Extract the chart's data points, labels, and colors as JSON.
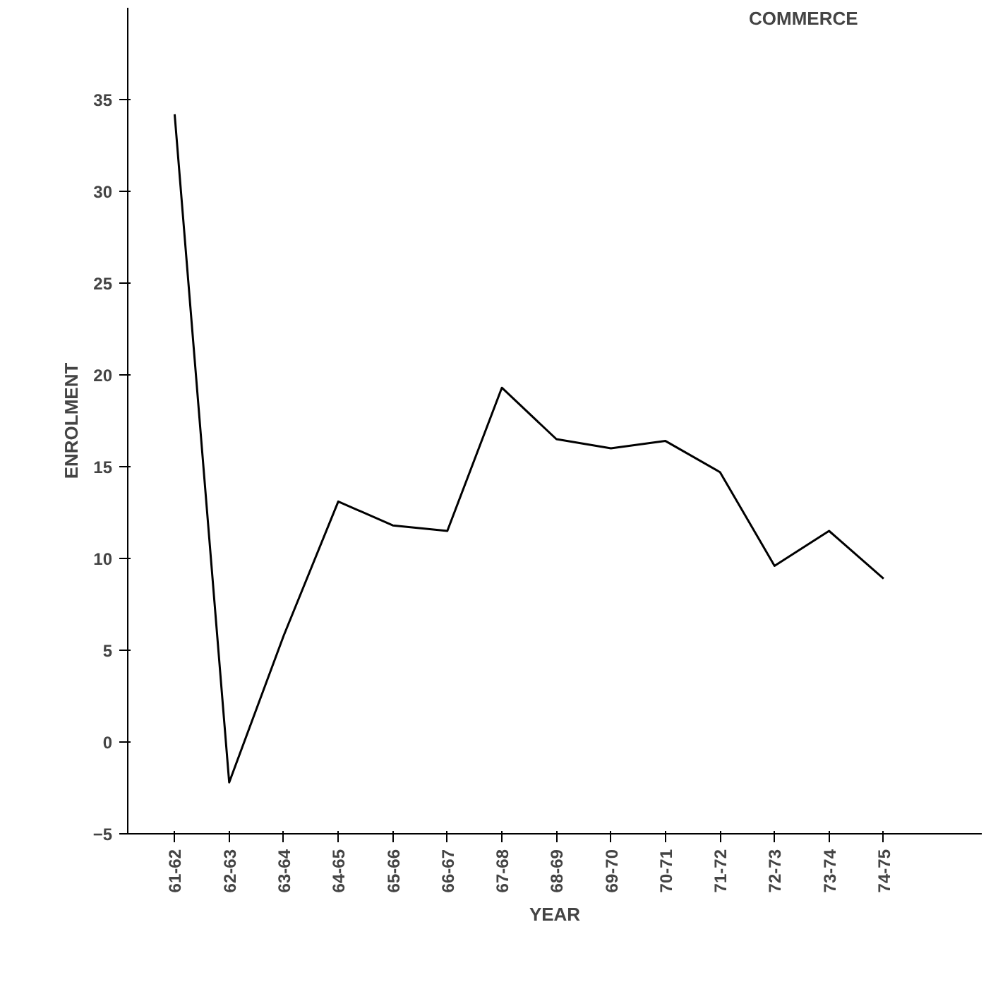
{
  "chart_data": {
    "type": "line",
    "xlabel": "YEAR",
    "ylabel": "ENROLMENT",
    "annotations": [
      "COMMERCE"
    ],
    "categories": [
      "61-62",
      "62-63",
      "63-64",
      "64-65",
      "65-66",
      "66-67",
      "67-68",
      "68-69",
      "69-70",
      "70-71",
      "71-72",
      "72-73",
      "73-74",
      "74-75"
    ],
    "values": [
      34.2,
      -2.2,
      5.8,
      13.1,
      11.8,
      11.5,
      19.3,
      16.5,
      16.0,
      16.4,
      14.7,
      9.6,
      11.5,
      8.9
    ],
    "color": "#000000",
    "ylim": [
      -5,
      40
    ],
    "yticks": [
      -5,
      0,
      5,
      10,
      15,
      20,
      25,
      30,
      35
    ]
  }
}
